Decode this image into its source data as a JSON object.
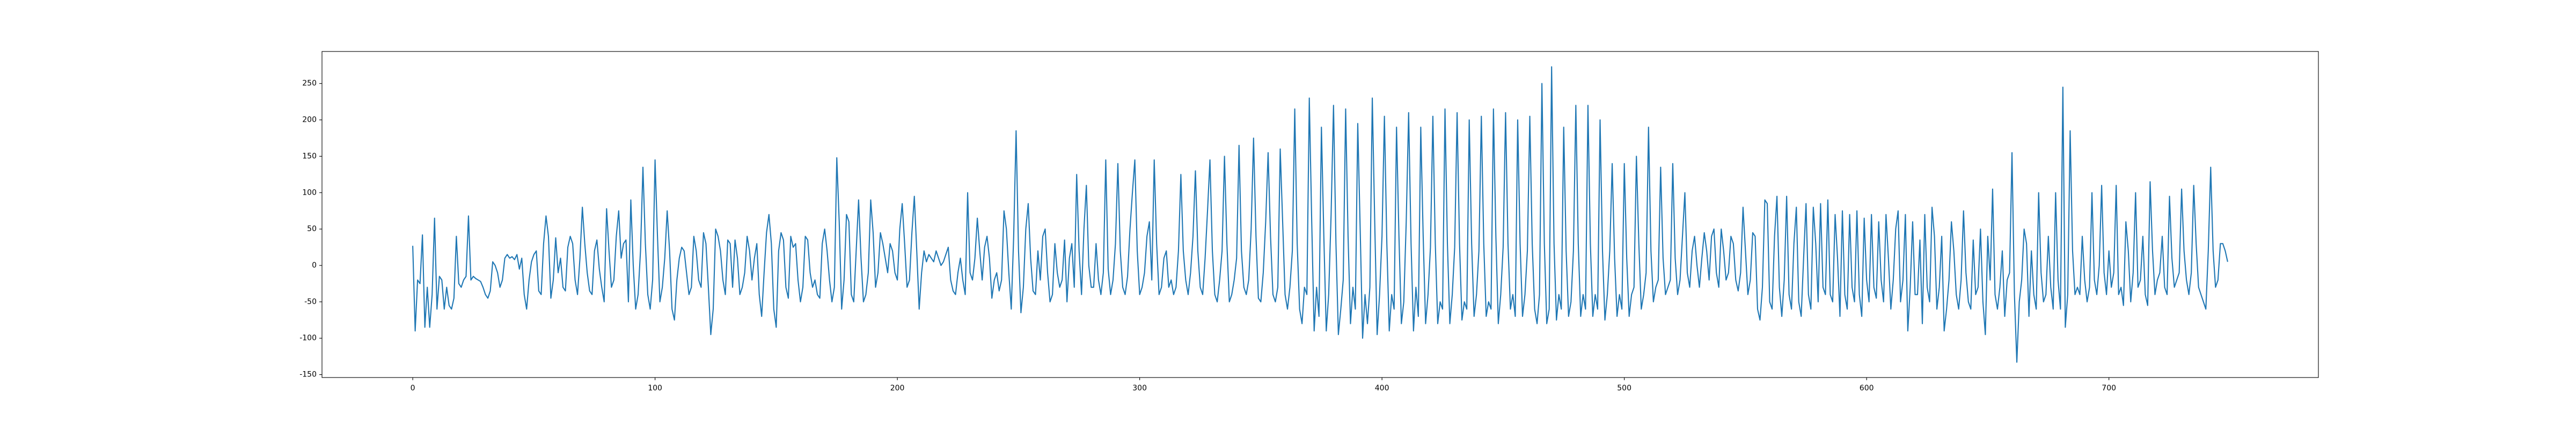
{
  "chart_data": {
    "type": "line",
    "xlim": [
      -37.45,
      786.45
    ],
    "xticks": [
      0,
      100,
      200,
      300,
      400,
      500,
      600,
      700
    ],
    "ylim": [
      -154,
      294
    ],
    "yticks": [
      -150,
      -100,
      -50,
      0,
      50,
      100,
      150,
      200,
      250
    ],
    "color": "#1f77b4",
    "values": [
      27,
      -90,
      -20,
      -25,
      42,
      -85,
      -30,
      -85,
      -40,
      65,
      -60,
      -15,
      -20,
      -60,
      -30,
      -55,
      -60,
      -45,
      40,
      -25,
      -30,
      -20,
      -15,
      68,
      -20,
      -15,
      -18,
      -20,
      -22,
      -30,
      -40,
      -45,
      -35,
      5,
      0,
      -10,
      -30,
      -20,
      10,
      15,
      10,
      12,
      8,
      15,
      -5,
      10,
      -40,
      -60,
      -20,
      5,
      15,
      20,
      -35,
      -40,
      30,
      68,
      40,
      -45,
      -20,
      38,
      -10,
      10,
      -30,
      -35,
      25,
      40,
      30,
      -20,
      -40,
      10,
      80,
      30,
      -10,
      -35,
      -40,
      20,
      35,
      -5,
      -30,
      -50,
      78,
      20,
      -30,
      -20,
      40,
      75,
      10,
      30,
      35,
      -50,
      90,
      0,
      -60,
      -40,
      20,
      135,
      30,
      -40,
      -60,
      -20,
      145,
      40,
      -50,
      -30,
      10,
      75,
      20,
      -60,
      -75,
      -20,
      10,
      25,
      20,
      -10,
      -40,
      -30,
      40,
      20,
      -20,
      -30,
      45,
      30,
      -30,
      -95,
      -60,
      50,
      40,
      20,
      -20,
      -40,
      35,
      30,
      -30,
      35,
      10,
      -40,
      -30,
      -10,
      40,
      20,
      -20,
      10,
      30,
      -40,
      -70,
      -10,
      45,
      70,
      30,
      -60,
      -85,
      20,
      45,
      35,
      -30,
      -45,
      40,
      25,
      30,
      -20,
      -50,
      -30,
      40,
      35,
      -10,
      -30,
      -20,
      -40,
      -45,
      30,
      50,
      20,
      -20,
      -50,
      -30,
      148,
      60,
      -60,
      -20,
      70,
      60,
      -40,
      -50,
      20,
      90,
      10,
      -50,
      -40,
      -10,
      90,
      45,
      -30,
      -10,
      45,
      30,
      10,
      -10,
      30,
      20,
      -10,
      -20,
      50,
      85,
      30,
      -30,
      -20,
      45,
      95,
      20,
      -60,
      -10,
      20,
      5,
      15,
      10,
      5,
      20,
      10,
      0,
      5,
      15,
      25,
      -20,
      -35,
      -40,
      -10,
      10,
      -20,
      -40,
      100,
      -10,
      -20,
      10,
      65,
      20,
      -20,
      25,
      40,
      10,
      -45,
      -20,
      -10,
      -35,
      -20,
      75,
      50,
      -10,
      -60,
      40,
      185,
      20,
      -65,
      -30,
      50,
      85,
      10,
      -35,
      -40,
      20,
      -20,
      40,
      50,
      -10,
      -50,
      -40,
      30,
      -10,
      -30,
      -20,
      35,
      -50,
      10,
      30,
      -30,
      125,
      20,
      -40,
      50,
      110,
      0,
      -30,
      -30,
      30,
      -20,
      -40,
      -10,
      145,
      -5,
      -40,
      -20,
      30,
      140,
      20,
      -30,
      -40,
      -15,
      50,
      100,
      145,
      20,
      -40,
      -30,
      -10,
      40,
      60,
      -20,
      145,
      30,
      -40,
      -30,
      10,
      20,
      -30,
      -20,
      -40,
      -30,
      20,
      125,
      20,
      -20,
      -40,
      -10,
      40,
      130,
      20,
      -30,
      -40,
      10,
      75,
      145,
      20,
      -40,
      -50,
      -20,
      20,
      150,
      30,
      -50,
      -40,
      -20,
      10,
      165,
      20,
      -30,
      -40,
      -20,
      50,
      175,
      40,
      -45,
      -50,
      -10,
      60,
      155,
      40,
      -40,
      -50,
      -30,
      160,
      60,
      -40,
      -60,
      -30,
      20,
      215,
      30,
      -60,
      -80,
      -30,
      -40,
      230,
      60,
      -90,
      -30,
      -70,
      190,
      40,
      -90,
      -40,
      70,
      220,
      30,
      -95,
      -60,
      -20,
      215,
      40,
      -80,
      -30,
      -60,
      195,
      50,
      -100,
      -40,
      -80,
      -30,
      230,
      60,
      -95,
      -40,
      40,
      205,
      30,
      -90,
      -40,
      -60,
      190,
      40,
      -80,
      -50,
      60,
      210,
      30,
      -90,
      -30,
      -70,
      190,
      40,
      -80,
      -40,
      25,
      205,
      30,
      -80,
      -50,
      -60,
      215,
      30,
      -80,
      -40,
      25,
      210,
      30,
      -75,
      -50,
      -60,
      200,
      30,
      -70,
      -40,
      20,
      205,
      30,
      -70,
      -50,
      -60,
      215,
      40,
      -80,
      -40,
      25,
      210,
      30,
      -60,
      -40,
      -70,
      200,
      30,
      -70,
      -40,
      20,
      205,
      30,
      -60,
      -80,
      -40,
      250,
      30,
      -80,
      -60,
      273,
      30,
      -75,
      -40,
      -60,
      190,
      20,
      -70,
      -50,
      20,
      220,
      30,
      -70,
      -40,
      -60,
      220,
      30,
      -70,
      -40,
      -60,
      200,
      20,
      -75,
      -40,
      20,
      140,
      10,
      -70,
      -40,
      -60,
      140,
      10,
      -70,
      -40,
      -30,
      150,
      30,
      -60,
      -40,
      -10,
      190,
      20,
      -50,
      -30,
      -20,
      135,
      10,
      -40,
      -30,
      -20,
      140,
      10,
      -40,
      -20,
      40,
      100,
      -10,
      -30,
      20,
      40,
      0,
      -30,
      10,
      45,
      20,
      -20,
      40,
      50,
      -10,
      -30,
      50,
      20,
      -20,
      -10,
      40,
      30,
      -20,
      -35,
      -10,
      80,
      20,
      -40,
      -20,
      45,
      40,
      -60,
      -75,
      -30,
      90,
      85,
      -50,
      -60,
      40,
      95,
      -30,
      -70,
      -20,
      95,
      -40,
      -60,
      30,
      80,
      -50,
      -70,
      10,
      85,
      -40,
      -60,
      80,
      30,
      -50,
      85,
      -30,
      -40,
      90,
      -40,
      -50,
      70,
      10,
      -70,
      75,
      -40,
      -60,
      70,
      -30,
      -50,
      75,
      -40,
      -70,
      65,
      -20,
      -50,
      70,
      -30,
      -45,
      60,
      -20,
      -50,
      70,
      10,
      -60,
      -20,
      50,
      75,
      -50,
      -20,
      70,
      -90,
      -30,
      60,
      -40,
      -40,
      35,
      -80,
      70,
      -30,
      -50,
      80,
      40,
      -60,
      -30,
      40,
      -90,
      -60,
      -20,
      60,
      20,
      -40,
      -60,
      -20,
      75,
      -10,
      -50,
      -60,
      35,
      -40,
      -30,
      50,
      -50,
      -95,
      40,
      -20,
      105,
      -40,
      -60,
      -30,
      20,
      -70,
      -20,
      -10,
      155,
      -40,
      -133,
      -50,
      -20,
      50,
      30,
      -70,
      20,
      -40,
      -60,
      100,
      -10,
      -50,
      -40,
      40,
      -30,
      -60,
      100,
      -20,
      -60,
      245,
      -85,
      -40,
      185,
      20,
      -40,
      -30,
      -40,
      40,
      -20,
      -50,
      -30,
      100,
      -20,
      -40,
      0,
      110,
      -10,
      -40,
      20,
      -30,
      -10,
      110,
      -40,
      -30,
      -55,
      60,
      20,
      -50,
      -10,
      100,
      -30,
      -20,
      40,
      -40,
      -55,
      115,
      20,
      -40,
      -20,
      -10,
      40,
      -30,
      -40,
      95,
      10,
      -30,
      -20,
      -10,
      105,
      20,
      -20,
      -40,
      -10,
      110,
      30,
      -30,
      -40,
      -50,
      -60,
      20,
      135,
      20,
      -30,
      -20,
      30,
      30,
      20,
      5
    ]
  }
}
